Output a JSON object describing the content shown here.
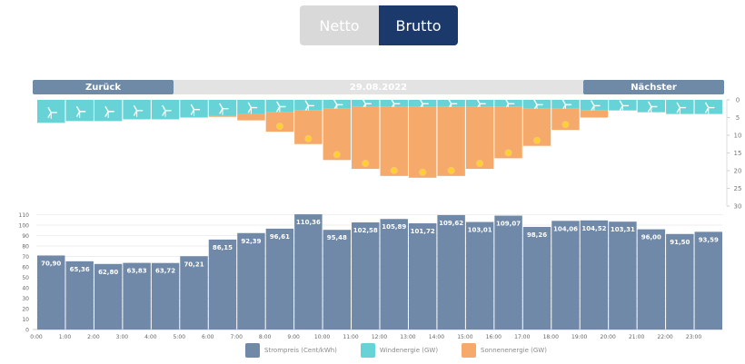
{
  "toggle": {
    "netto": "Netto",
    "brutto": "Brutto",
    "active": "brutto"
  },
  "nav": {
    "prev": "Zurück",
    "date": "29.08.2022",
    "next": "Nächster"
  },
  "colors": {
    "price": "#7089a8",
    "wind": "#68d3d6",
    "sun": "#f5a96b",
    "navbar": "#6f8aa7",
    "active_toggle": "#1b3a6b"
  },
  "chart_data": [
    {
      "type": "bar",
      "title": "",
      "categories": [
        "0:00",
        "1:00",
        "2:00",
        "3:00",
        "4:00",
        "5:00",
        "6:00",
        "7:00",
        "8:00",
        "9:00",
        "10:00",
        "11:00",
        "12:00",
        "13:00",
        "14:00",
        "15:00",
        "16:00",
        "17:00",
        "18:00",
        "19:00",
        "20:00",
        "21:00",
        "22:00",
        "23:00"
      ],
      "series": [
        {
          "name": "Windenergie (GW)",
          "values": [
            6.5,
            6.0,
            6.0,
            5.5,
            5.5,
            5.0,
            4.5,
            4.0,
            3.5,
            3.0,
            2.5,
            2.0,
            2.0,
            2.0,
            2.0,
            2.0,
            2.0,
            2.5,
            2.5,
            3.0,
            3.0,
            3.5,
            4.0,
            4.0
          ]
        },
        {
          "name": "Sonnenenergie (GW)",
          "values": [
            0,
            0,
            0,
            0,
            0,
            0,
            0.3,
            1.8,
            5.5,
            9.5,
            14.5,
            17.5,
            19.5,
            20.0,
            19.5,
            17.5,
            14.5,
            10.5,
            6.0,
            2.0,
            0,
            0,
            0,
            0
          ]
        }
      ],
      "ylim": [
        0,
        30
      ],
      "yticks": [
        0,
        5,
        10,
        15,
        20,
        25,
        30
      ],
      "y_inverted": true
    },
    {
      "type": "bar",
      "title": "",
      "categories": [
        "0:00",
        "1:00",
        "2:00",
        "3:00",
        "4:00",
        "5:00",
        "6:00",
        "7:00",
        "8:00",
        "9:00",
        "10:00",
        "11:00",
        "12:00",
        "13:00",
        "14:00",
        "15:00",
        "16:00",
        "17:00",
        "18:00",
        "19:00",
        "20:00",
        "21:00",
        "22:00",
        "23:00"
      ],
      "series": [
        {
          "name": "Strompreis (Cent/kWh)",
          "values": [
            70.9,
            65.36,
            62.8,
            63.83,
            63.72,
            70.21,
            86.15,
            92.39,
            96.61,
            110.36,
            95.48,
            102.58,
            105.89,
            101.72,
            109.62,
            103.01,
            109.07,
            98.26,
            104.06,
            104.52,
            103.31,
            96.0,
            91.5,
            93.59
          ]
        }
      ],
      "value_labels": [
        "70,90",
        "65,36",
        "62,80",
        "63,83",
        "63,72",
        "70,21",
        "86,15",
        "92,39",
        "96,61",
        "110,36",
        "95,48",
        "102,58",
        "105,89",
        "101,72",
        "109,62",
        "103,01",
        "109,07",
        "98,26",
        "104,06",
        "104,52",
        "103,31",
        "96,00",
        "91,50",
        "93,59"
      ],
      "ylim": [
        0,
        110
      ],
      "yticks": [
        0,
        10,
        20,
        30,
        40,
        50,
        60,
        70,
        80,
        90,
        100,
        110
      ],
      "legend_position": "bottom"
    }
  ],
  "legend": [
    {
      "label": "Strompreis (Cent/kWh)",
      "color": "#7089a8"
    },
    {
      "label": "Windenergie (GW)",
      "color": "#68d3d6"
    },
    {
      "label": "Sonnenenergie (GW)",
      "color": "#f5a96b"
    }
  ]
}
